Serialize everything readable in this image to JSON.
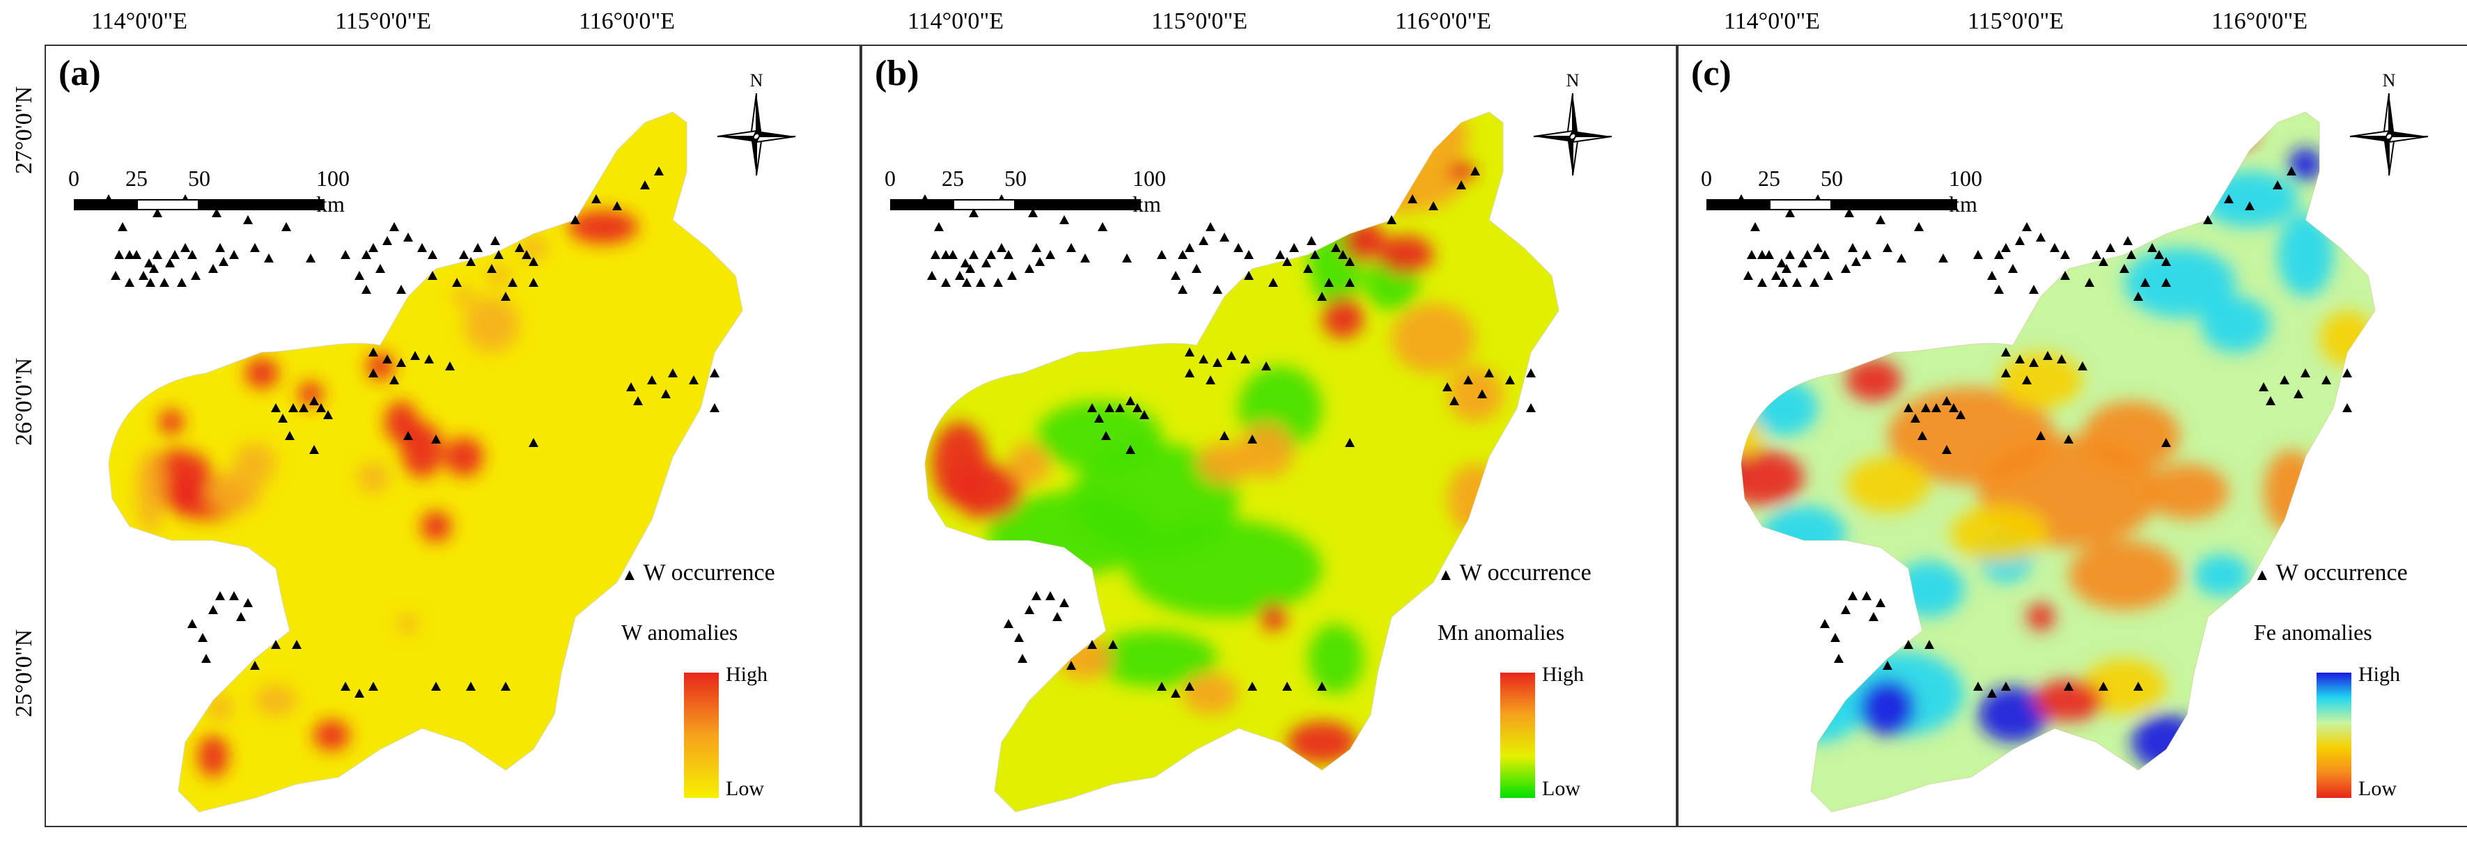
{
  "axes": {
    "lon_ticks": [
      "114°0'0\"E",
      "115°0'0\"E",
      "116°0'0\"E"
    ],
    "lat_ticks": [
      "27°0'0\"N",
      "26°0'0\"N",
      "25°0'0\"N"
    ]
  },
  "scale_bar": {
    "ticks": [
      "0",
      "25",
      "50",
      "100 km"
    ]
  },
  "north_label": "N",
  "occurrence_label": "W occurrence",
  "ramp_labels": {
    "high": "High",
    "low": "Low"
  },
  "panels": [
    {
      "id": "a",
      "label": "(a)",
      "legend_title": "W anomalies",
      "ramp_colors": [
        "#e8261c",
        "#f5a21d",
        "#f7f000"
      ]
    },
    {
      "id": "b",
      "label": "(b)",
      "legend_title": "Mn anomalies",
      "ramp_colors": [
        "#e8261c",
        "#f5a21d",
        "#e6f000",
        "#00e000"
      ]
    },
    {
      "id": "c",
      "label": "(c)",
      "legend_title": "Fe anomalies",
      "ramp_colors": [
        "#1a1ae0",
        "#22d6f0",
        "#c8f5a0",
        "#f7d000",
        "#f58a1d",
        "#e8261c"
      ]
    }
  ],
  "colors": {
    "background": "#ffffff",
    "frame": "#333333",
    "marker": "#000000"
  }
}
